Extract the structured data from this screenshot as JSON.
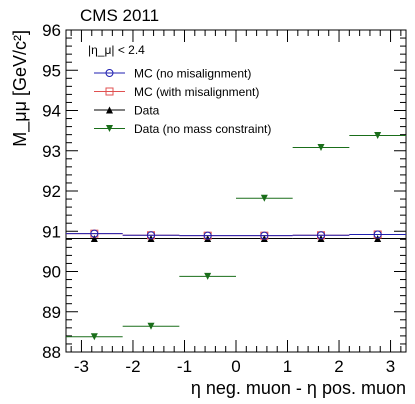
{
  "chart_data": {
    "type": "scatter",
    "title": "CMS 2011",
    "annotation": "|η_μ| < 2.4",
    "xlabel": "η neg. muon - η pos. muon",
    "ylabel": "M_μμ [GeV/c²]",
    "xlim": [
      -3.3,
      3.3
    ],
    "ylim": [
      88,
      96
    ],
    "xticks": [
      -3,
      -2,
      -1,
      0,
      1,
      2,
      3
    ],
    "yticks": [
      88,
      89,
      90,
      91,
      92,
      93,
      94,
      95,
      96
    ],
    "bins": [
      [
        -3.3,
        -2.2
      ],
      [
        -2.2,
        -1.1
      ],
      [
        -1.1,
        0
      ],
      [
        0,
        1.1
      ],
      [
        1.1,
        2.2
      ],
      [
        2.2,
        3.3
      ]
    ],
    "x": [
      -2.75,
      -1.65,
      -0.55,
      0.55,
      1.65,
      2.75
    ],
    "legend_position": "top-left",
    "grid": false,
    "series": [
      {
        "name": "MC (no misalignment)",
        "marker": "open-circle",
        "color": "#1f1fb0",
        "values": [
          90.94,
          90.9,
          90.89,
          90.89,
          90.9,
          90.92
        ]
      },
      {
        "name": "MC (with misalignment)",
        "marker": "open-square",
        "color": "#e05050",
        "values": [
          90.94,
          90.9,
          90.89,
          90.89,
          90.9,
          90.92
        ]
      },
      {
        "name": "Data",
        "marker": "filled-triangle-up",
        "color": "#000000",
        "values": [
          90.82,
          90.82,
          90.82,
          90.82,
          90.82,
          90.82
        ]
      },
      {
        "name": "Data (no mass constraint)",
        "marker": "filled-triangle-down",
        "color": "#1a6e1a",
        "values": [
          88.38,
          88.64,
          89.88,
          91.82,
          93.08,
          93.38
        ]
      }
    ]
  }
}
